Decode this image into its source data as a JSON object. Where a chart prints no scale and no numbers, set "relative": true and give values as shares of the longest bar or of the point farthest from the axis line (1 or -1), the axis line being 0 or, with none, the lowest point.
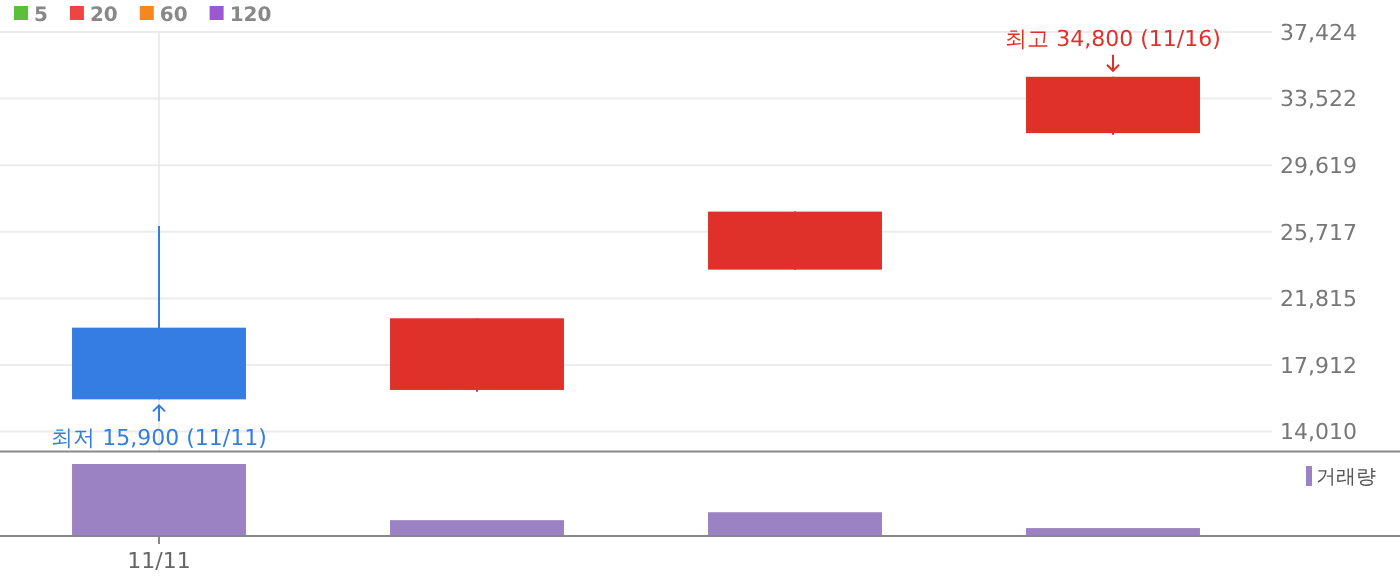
{
  "chart_data": [
    {
      "type": "candlestick",
      "categories": [
        null,
        null,
        null,
        null
      ],
      "ohlc": [
        [
          20100,
          26050,
          15900,
          15900
        ],
        [
          16450,
          20650,
          16350,
          20650
        ],
        [
          23500,
          26900,
          23500,
          26900
        ],
        [
          31500,
          34800,
          31400,
          34800
        ]
      ],
      "colors": [
        "#367de3",
        "#e0302a",
        "#e0302a",
        "#e0302a"
      ],
      "series": [
        {
          "name": "5",
          "color": "#5bbf3c",
          "values": [
            null,
            null,
            null,
            null
          ]
        },
        {
          "name": "20",
          "color": "#ee4444",
          "values": [
            null,
            null,
            null,
            null
          ]
        },
        {
          "name": "60",
          "color": "#f5871f",
          "values": [
            null,
            null,
            null,
            null
          ]
        },
        {
          "name": "120",
          "color": "#9b59d0",
          "values": [
            null,
            null,
            null,
            null
          ]
        }
      ],
      "ylim": [
        12850,
        37424
      ],
      "yticks": [
        {
          "value": 14010,
          "label": "14,010"
        },
        {
          "value": 17912,
          "label": "17,912"
        },
        {
          "value": 21815,
          "label": "21,815"
        },
        {
          "value": 25717,
          "label": "25,717"
        },
        {
          "value": 29619,
          "label": "29,619"
        },
        {
          "value": 33522,
          "label": "33,522"
        },
        {
          "value": 37424,
          "label": "37,424"
        }
      ],
      "annotations": [
        {
          "text": "최저 15,900 (11/11)",
          "y": 15900
        },
        {
          "text": "최고 34,800 (11/16)",
          "y": 34800
        }
      ],
      "grid": true,
      "legend": "top left",
      "tick_labels": "y"
    },
    {
      "type": "bar",
      "categories": [
        "11/11",
        null,
        null,
        null
      ],
      "relative": true,
      "series": [
        {
          "name": "거래량",
          "color": "#9b82c3",
          "values": [
            1,
            0.22,
            0.33,
            0.11
          ]
        }
      ],
      "legend": "top right",
      "tick_labels": "x"
    }
  ]
}
